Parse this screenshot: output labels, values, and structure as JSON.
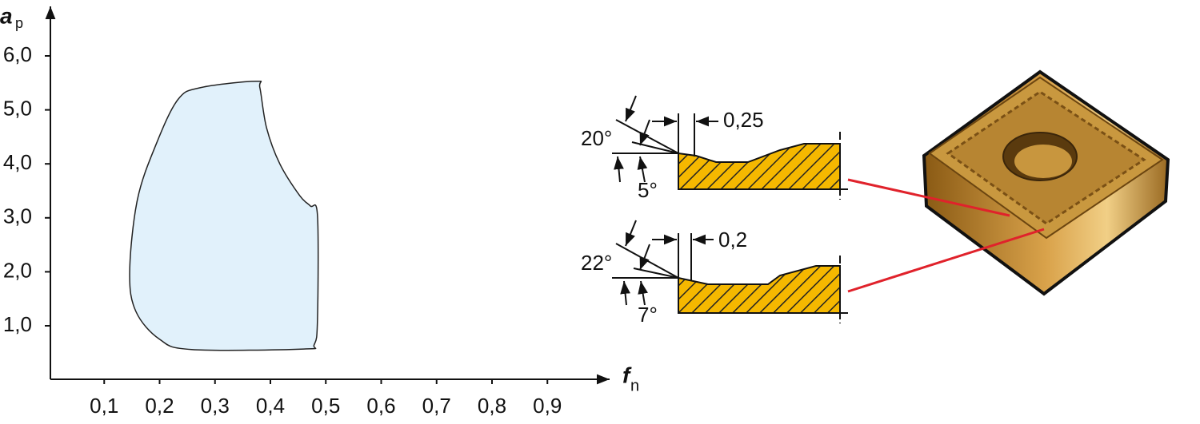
{
  "chart_data": {
    "type": "area",
    "ylabel": "a",
    "ylabel_sub": "p",
    "xlabel": "f",
    "xlabel_sub": "n",
    "xlim": [
      0,
      1.0
    ],
    "ylim": [
      0,
      7.0
    ],
    "xticks": [
      {
        "value": 0.1,
        "label": "0,1"
      },
      {
        "value": 0.2,
        "label": "0,2"
      },
      {
        "value": 0.3,
        "label": "0,3"
      },
      {
        "value": 0.4,
        "label": "0,4"
      },
      {
        "value": 0.5,
        "label": "0,5"
      },
      {
        "value": 0.6,
        "label": "0,6"
      },
      {
        "value": 0.7,
        "label": "0,7"
      },
      {
        "value": 0.8,
        "label": "0,8"
      },
      {
        "value": 0.9,
        "label": "0,9"
      }
    ],
    "yticks": [
      {
        "value": 1,
        "label": "1,0"
      },
      {
        "value": 2,
        "label": "2,0"
      },
      {
        "value": 3,
        "label": "3,0"
      },
      {
        "value": 4,
        "label": "4,0"
      },
      {
        "value": 5,
        "label": "5,0"
      },
      {
        "value": 6,
        "label": "6,0"
      }
    ],
    "color": "#e1f1fb",
    "x": [
      0.374,
      0.273,
      0.233,
      0.194,
      0.16,
      0.146,
      0.157,
      0.2,
      0.258,
      0.46,
      0.479,
      0.485,
      0.485,
      0.472,
      0.453,
      0.417,
      0.393,
      0.381
    ],
    "values": [
      5.53,
      5.41,
      5.19,
      4.37,
      3.34,
      2.0,
      1.27,
      0.75,
      0.56,
      0.57,
      0.65,
      1.12,
      3.04,
      3.22,
      3.41,
      4.0,
      4.67,
      5.41
    ]
  },
  "diagram": {
    "upper": {
      "angle_large": "20°",
      "angle_small": "5°",
      "land": "0,25"
    },
    "lower": {
      "angle_large": "22°",
      "angle_small": "7°",
      "land": "0,2"
    }
  }
}
